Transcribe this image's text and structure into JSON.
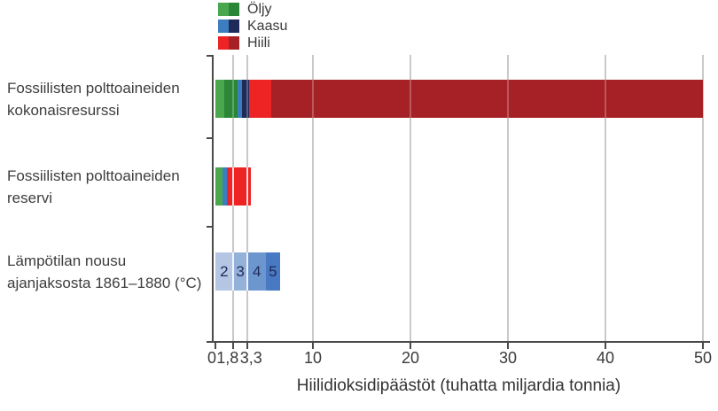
{
  "legend": {
    "items": [
      {
        "id": "oljy",
        "label": "Öljy",
        "color_light": "#4aa74d",
        "color_dark": "#2c8637"
      },
      {
        "id": "kaasu",
        "label": "Kaasu",
        "color_light": "#3c7dc0",
        "color_dark": "#1f2a58"
      },
      {
        "id": "hiili",
        "label": "Hiili",
        "color_light": "#ee2424",
        "color_dark": "#a52125"
      }
    ]
  },
  "chart_data": {
    "type": "bar",
    "orientation": "horizontal",
    "stacked": true,
    "title": "",
    "xlabel": "Hiilidioksidipäästöt (tuhatta miljardia tonnia)",
    "ylabel": "",
    "xlim": [
      0,
      50
    ],
    "grid": "vertical",
    "legend_position": "top",
    "x_ticks": [
      {
        "value": 0,
        "label": "0"
      },
      {
        "value": 1.8,
        "label": "1,8"
      },
      {
        "value": 3.3,
        "label": "3,3"
      },
      {
        "value": 10,
        "label": "10"
      },
      {
        "value": 20,
        "label": "20"
      },
      {
        "value": 30,
        "label": "30"
      },
      {
        "value": 40,
        "label": "40"
      },
      {
        "value": 50,
        "label": "50"
      }
    ],
    "gridline_values": [
      1.8,
      3.3,
      10,
      20,
      30,
      40,
      50
    ],
    "categories": [
      {
        "label_lines": [
          "Fossiilisten polttoaineiden",
          "kokonaisresurssi"
        ],
        "total": 50,
        "segments": [
          {
            "name": "öljy-reservi",
            "value": 0.9,
            "color": "#4aa74d"
          },
          {
            "name": "öljy-lisäresurssi",
            "value": 1.4,
            "color": "#2c8637"
          },
          {
            "name": "kaasu-reservi",
            "value": 0.4,
            "color": "#3c7dc0"
          },
          {
            "name": "kaasu-lisäresurssi",
            "value": 0.8,
            "color": "#1f2a58"
          },
          {
            "name": "hiili-reservi",
            "value": 2.2,
            "color": "#ee2424"
          },
          {
            "name": "hiili-lisäresurssi",
            "value": 44.3,
            "color": "#a52125"
          }
        ]
      },
      {
        "label_lines": [
          "Fossiilisten polttoaineiden",
          "reservi"
        ],
        "total": 3.6,
        "segments": [
          {
            "name": "öljy",
            "value": 0.75,
            "color": "#4aa74d"
          },
          {
            "name": "kaasu",
            "value": 0.45,
            "color": "#3c7dc0"
          },
          {
            "name": "hiili",
            "value": 2.4,
            "color": "#ee2424"
          }
        ]
      },
      {
        "label_lines": [
          "Lämpötilan nousu",
          "ajanjaksosta 1861–1880 (°C)"
        ],
        "total": 6.6,
        "segments": [
          {
            "name": "2°C",
            "value": 1.8,
            "text": "2",
            "color": "#b4c6e4"
          },
          {
            "name": "3°C",
            "value": 1.5,
            "text": "3",
            "color": "#94b1da"
          },
          {
            "name": "4°C",
            "value": 1.9,
            "text": "4",
            "color": "#6c96ce"
          },
          {
            "name": "5°C",
            "value": 1.4,
            "text": "5",
            "color": "#4879c2"
          }
        ]
      }
    ]
  }
}
